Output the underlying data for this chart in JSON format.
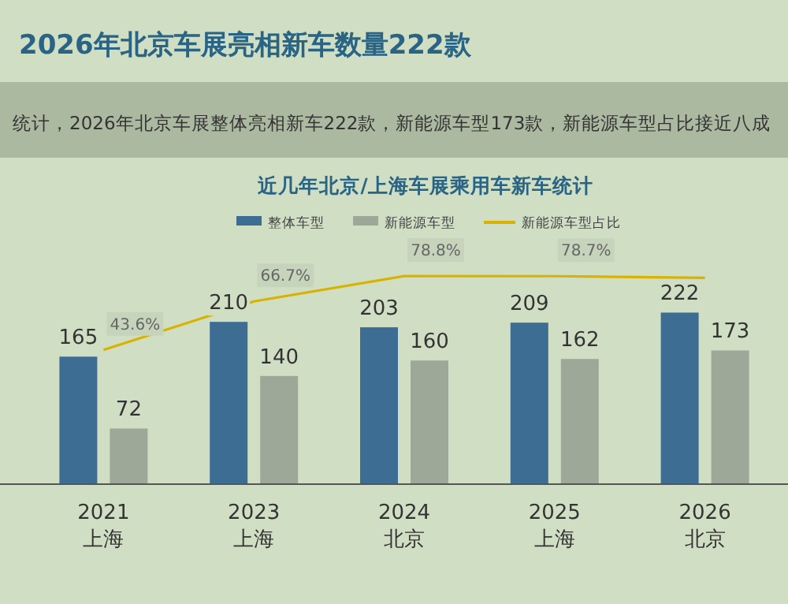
{
  "chart_data": {
    "type": "bar",
    "title": "2026年北京车展亮相新车数量222款",
    "subtitle": "统计，2026年北京车展整体亮相新车222款，新能源车型173款，新能源车型占比接近八成",
    "annotations": [
      "近几年北京/上海车展乘用车新车统计"
    ],
    "categories": [
      "2021\n上海",
      "2023\n上海",
      "2024\n北京",
      "2025\n上海",
      "2026\n北京"
    ],
    "series": [
      {
        "name": "整体车型",
        "color": "#3e6d93",
        "values": [
          165,
          210,
          203,
          209,
          222
        ]
      },
      {
        "name": "新能源车型",
        "color": "#9ea899",
        "values": [
          72,
          140,
          160,
          162,
          173
        ]
      },
      {
        "name": "新能源车型占比",
        "type": "line",
        "axis": "y2",
        "color": "#d9b200",
        "values": [
          43.6,
          66.7,
          78.8,
          78.7,
          77.9
        ],
        "value_labels": [
          "43.6%",
          "66.7%",
          "78.8%",
          "78.7%",
          null
        ]
      }
    ],
    "data_labels": true,
    "tick_labels": "x",
    "legend": "top right",
    "grid": false
  }
}
